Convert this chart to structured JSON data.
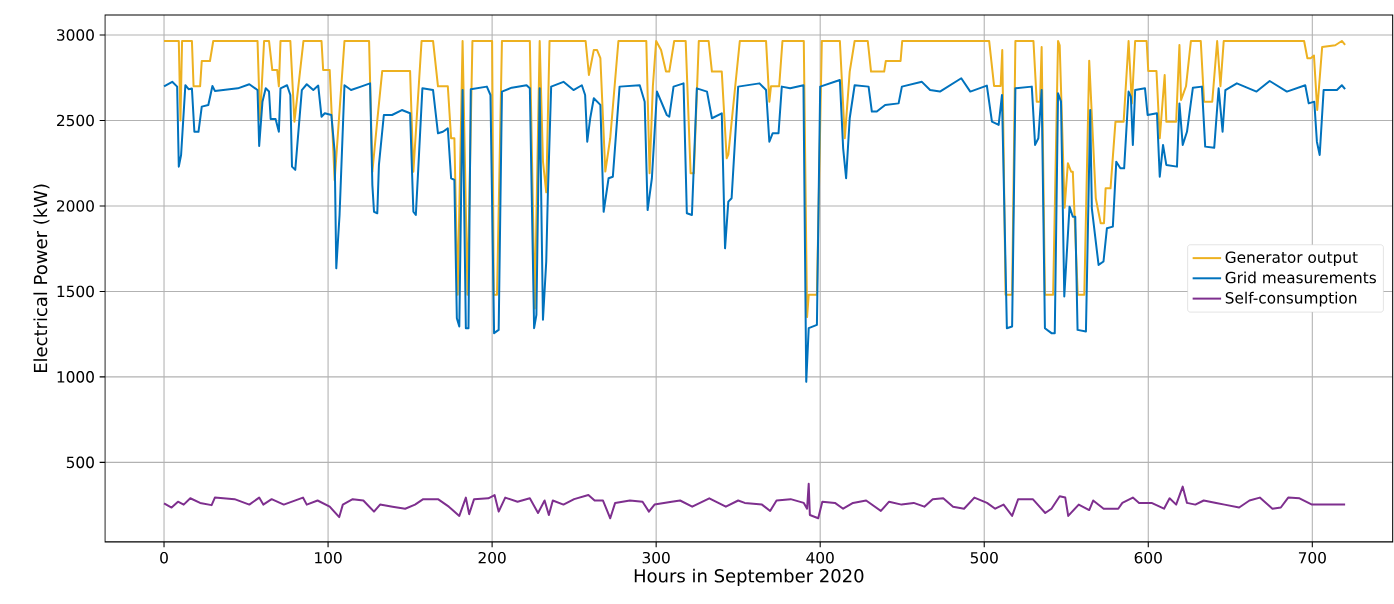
{
  "chart_data": {
    "type": "line",
    "xlabel": "Hours in September 2020",
    "ylabel": "Electrical Power (kW)",
    "xlim": [
      -36,
      749
    ],
    "ylim": [
      35,
      3117
    ],
    "xticks": [
      0,
      100,
      200,
      300,
      400,
      500,
      600,
      700
    ],
    "yticks": [
      500,
      1000,
      1500,
      2000,
      2500,
      3000
    ],
    "grid": true,
    "legend": "right",
    "series": [
      {
        "name": "Generator output",
        "color": "#edb120",
        "x": [
          0,
          9,
          10,
          11,
          17,
          18,
          22,
          23,
          28,
          30,
          57,
          58.5,
          61,
          64,
          66,
          69,
          70,
          71,
          77,
          79.5,
          85,
          96,
          97,
          101,
          104,
          110,
          125,
          127,
          130,
          133,
          150,
          152,
          157,
          164,
          167,
          173,
          175,
          177,
          179,
          182,
          185,
          188,
          200,
          201,
          203,
          206,
          223,
          226,
          229,
          231,
          233,
          235,
          257,
          259,
          262,
          264,
          266,
          269,
          272,
          277,
          294,
          296,
          298,
          300,
          303,
          306,
          308,
          311,
          318,
          321,
          323,
          326,
          332,
          334,
          340,
          343,
          344,
          351,
          367,
          369,
          370,
          375,
          377,
          390,
          392,
          393,
          398,
          401,
          412,
          415,
          418,
          421,
          429,
          431,
          439,
          440,
          449,
          450,
          503,
          506,
          510,
          511,
          513,
          517,
          519,
          530,
          532,
          534,
          535,
          537,
          542,
          545,
          546,
          549,
          551,
          553,
          554,
          557,
          561,
          564,
          568,
          571,
          573,
          574,
          577,
          580,
          585,
          588,
          590,
          592,
          599,
          600,
          605,
          607,
          610,
          611,
          617,
          619,
          620,
          623,
          626,
          632,
          634,
          639,
          642,
          644,
          646,
          695,
          697,
          699,
          701,
          703,
          706,
          714,
          718,
          720
        ],
        "values": [
          2965,
          2965,
          2500,
          2965,
          2965,
          2700,
          2700,
          2848,
          2848,
          2965,
          2965,
          2500,
          2965,
          2965,
          2795,
          2795,
          2700,
          2965,
          2965,
          2493,
          2965,
          2965,
          2795,
          2795,
          2150,
          2965,
          2965,
          2200,
          2500,
          2789,
          2789,
          2200,
          2965,
          2965,
          2700,
          2700,
          2396,
          2396,
          1480,
          2965,
          1480,
          2965,
          2965,
          1480,
          1480,
          2965,
          2965,
          1400,
          2965,
          2260,
          2080,
          2965,
          2965,
          2766,
          2912,
          2912,
          2864,
          2201,
          2396,
          2965,
          2965,
          2191,
          2700,
          2965,
          2912,
          2786,
          2786,
          2965,
          2965,
          2191,
          2191,
          2965,
          2965,
          2786,
          2786,
          2279,
          2300,
          2965,
          2965,
          2610,
          2700,
          2700,
          2965,
          2965,
          1350,
          1480,
          1480,
          2965,
          2965,
          2396,
          2786,
          2965,
          2965,
          2786,
          2786,
          2848,
          2848,
          2965,
          2965,
          2702,
          2702,
          2912,
          1480,
          1480,
          2965,
          2965,
          2610,
          2610,
          2930,
          1480,
          1480,
          2965,
          2940,
          1990,
          2250,
          2200,
          2200,
          1480,
          1480,
          2850,
          2045,
          1899,
          1899,
          2103,
          2103,
          2493,
          2493,
          2965,
          2600,
          2965,
          2965,
          2789,
          2789,
          2396,
          2766,
          2493,
          2493,
          2942,
          2620,
          2700,
          2965,
          2965,
          2610,
          2610,
          2965,
          2700,
          2965,
          2965,
          2864,
          2864,
          2880,
          2561,
          2930,
          2940,
          2965,
          2942
        ]
      },
      {
        "name": "Grid measurements",
        "color": "#0072bd",
        "x": [
          0,
          5,
          8,
          9,
          10.4,
          13,
          15,
          17,
          18.5,
          21,
          23,
          27,
          29.5,
          31,
          45,
          52,
          57,
          58,
          60,
          62,
          64,
          65,
          68,
          70,
          71,
          75,
          77,
          78,
          80,
          84,
          87,
          91,
          94,
          96,
          98,
          102,
          104,
          105,
          107,
          110,
          114,
          120,
          125.6,
          127,
          128,
          130,
          131,
          134,
          139,
          145,
          150,
          152,
          153.5,
          155,
          157.5,
          164,
          167,
          170,
          173,
          175,
          177,
          178.5,
          180,
          182,
          184,
          185.6,
          187,
          196.8,
          199,
          201.2,
          204,
          206,
          212,
          221,
          223,
          225.6,
          227,
          229,
          231,
          233,
          234,
          236,
          243.5,
          249.6,
          254.7,
          256.7,
          258,
          259.8,
          262,
          266,
          268,
          271,
          273.6,
          277.7,
          290,
          293,
          294.8,
          297.4,
          300.5,
          306.5,
          308,
          310.6,
          316.7,
          318.7,
          321.8,
          324.8,
          331,
          334,
          340,
          342,
          344,
          346,
          350,
          363,
          367,
          369,
          371,
          374.6,
          376.6,
          381.7,
          389.8,
          391.5,
          393,
          398,
          400,
          412,
          414,
          415.8,
          418,
          421,
          429.5,
          431.5,
          434.5,
          439.6,
          447.8,
          449.8,
          462,
          467,
          473,
          486,
          491.5,
          501.6,
          504.7,
          508.8,
          510.8,
          513.8,
          517,
          519,
          529,
          531,
          533,
          535,
          537,
          541,
          543,
          545,
          546.8,
          548.8,
          552,
          554,
          555.5,
          556.9,
          562,
          564.6,
          565.6,
          569.7,
          572.7,
          574.8,
          578.4,
          580.5,
          583,
          585.3,
          588,
          589.4,
          590.6,
          592,
          598,
          599.6,
          605.3,
          607,
          609,
          611,
          617.5,
          619,
          621,
          623.6,
          627.2,
          632.7,
          634.7,
          640.2,
          642.9,
          645.3,
          647,
          654,
          666,
          674,
          684.5,
          695.7,
          697.8,
          701.2,
          702.8,
          704.5,
          706.9,
          715,
          718,
          720
        ],
        "values": [
          2700,
          2726,
          2698,
          2230,
          2298,
          2706,
          2683,
          2687,
          2434,
          2434,
          2581,
          2591,
          2702,
          2673,
          2688,
          2712,
          2678,
          2351,
          2610,
          2688,
          2669,
          2509,
          2509,
          2434,
          2688,
          2706,
          2649,
          2230,
          2211,
          2678,
          2712,
          2678,
          2704,
          2522,
          2542,
          2532,
          2318,
          1635,
          1947,
          2706,
          2678,
          2698,
          2717,
          2122,
          1966,
          1957,
          2240,
          2532,
          2532,
          2561,
          2542,
          1966,
          1947,
          2220,
          2688,
          2678,
          2425,
          2434,
          2454,
          2162,
          2152,
          1343,
          1295,
          2678,
          1285,
          1285,
          2683,
          2698,
          2649,
          1256,
          1275,
          2669,
          2692,
          2706,
          2688,
          1285,
          1363,
          2688,
          1334,
          1675,
          2074,
          2698,
          2726,
          2678,
          2706,
          2649,
          2376,
          2513,
          2630,
          2591,
          1966,
          2162,
          2171,
          2698,
          2706,
          2610,
          1976,
          2162,
          2669,
          2532,
          2522,
          2698,
          2717,
          1957,
          1947,
          2688,
          2669,
          2513,
          2542,
          1752,
          2025,
          2045,
          2698,
          2717,
          2678,
          2376,
          2425,
          2425,
          2698,
          2688,
          2706,
          971,
          1285,
          1304,
          2698,
          2737,
          2337,
          2162,
          2513,
          2706,
          2698,
          2552,
          2552,
          2591,
          2600,
          2698,
          2726,
          2678,
          2669,
          2747,
          2669,
          2704,
          2493,
          2474,
          2649,
          1285,
          1295,
          2688,
          2698,
          2357,
          2396,
          2678,
          1285,
          1256,
          1256,
          2659,
          2610,
          1470,
          1996,
          1937,
          1937,
          1275,
          1265,
          2561,
          1986,
          1655,
          1675,
          1870,
          1879,
          2259,
          2220,
          2220,
          2669,
          2639,
          2357,
          2678,
          2688,
          2532,
          2542,
          2171,
          2357,
          2240,
          2230,
          2600,
          2357,
          2434,
          2692,
          2698,
          2347,
          2340,
          2688,
          2434,
          2678,
          2717,
          2669,
          2731,
          2669,
          2706,
          2600,
          2610,
          2376,
          2298,
          2678,
          2678,
          2706,
          2683
        ]
      },
      {
        "name": "Self-consumption",
        "color": "#7e2f8e",
        "x": [
          0,
          4.6,
          8.5,
          12,
          16,
          22,
          29,
          31,
          43,
          52,
          58,
          60.5,
          65.6,
          73,
          84.7,
          87,
          93.6,
          101,
          106.8,
          109,
          115,
          121.5,
          128,
          131.7,
          139.3,
          147,
          153,
          158,
          167,
          173.6,
          180,
          184,
          186,
          189,
          197.7,
          201.5,
          204,
          208,
          215.5,
          223,
          228,
          232,
          234.6,
          237,
          243.5,
          250,
          258.7,
          262.5,
          267.6,
          272,
          275,
          284,
          291.7,
          295.6,
          299,
          309.5,
          314.6,
          322,
          332.4,
          342.5,
          350,
          354,
          364.5,
          369.5,
          373.4,
          382,
          390,
          392,
          393,
          393.7,
          398.8,
          401.3,
          409,
          414,
          420,
          428,
          437,
          442,
          449.6,
          457,
          463.5,
          468.6,
          475,
          481,
          487.7,
          494,
          501.7,
          506.7,
          511.8,
          517,
          520.7,
          529.6,
          537.2,
          541,
          546,
          549.4,
          551.2,
          557.6,
          564,
          566.4,
          572.8,
          581.7,
          584.2,
          590.6,
          594.4,
          602,
          609.6,
          613,
          617,
          621,
          623.6,
          628.7,
          633.8,
          641.4,
          646.5,
          655.4,
          661.7,
          668,
          675.7,
          680.8,
          685.3,
          692.2,
          699.8,
          720
        ],
        "values": [
          260,
          236,
          270,
          253,
          290,
          263,
          250,
          294,
          285,
          253,
          294,
          253,
          285,
          253,
          294,
          253,
          277,
          241,
          180,
          253,
          285,
          277,
          212,
          253,
          241,
          229,
          253,
          285,
          285,
          241,
          187,
          294,
          197,
          285,
          290,
          309,
          212,
          294,
          270,
          290,
          204,
          277,
          192,
          277,
          253,
          285,
          309,
          277,
          277,
          173,
          263,
          277,
          270,
          212,
          253,
          270,
          277,
          241,
          290,
          241,
          277,
          263,
          253,
          216,
          277,
          285,
          263,
          229,
          375,
          192,
          173,
          270,
          263,
          229,
          263,
          277,
          216,
          270,
          253,
          263,
          241,
          285,
          290,
          241,
          229,
          294,
          263,
          229,
          253,
          187,
          285,
          285,
          204,
          229,
          302,
          294,
          187,
          253,
          221,
          277,
          229,
          229,
          263,
          294,
          263,
          263,
          229,
          290,
          253,
          358,
          263,
          253,
          277,
          263,
          253,
          236,
          277,
          294,
          229,
          236,
          294,
          290,
          253,
          253
        ]
      }
    ]
  }
}
